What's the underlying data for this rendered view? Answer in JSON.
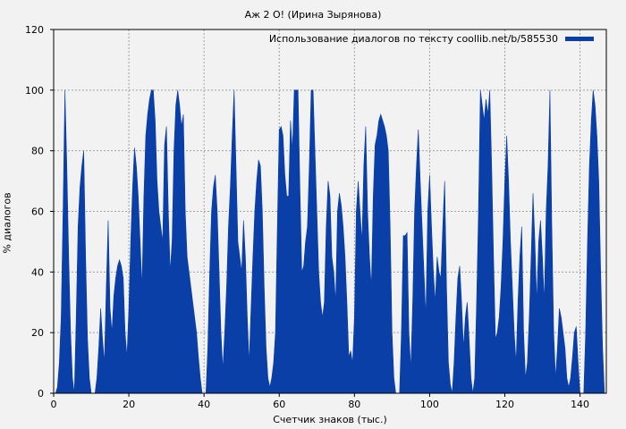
{
  "chart_data": {
    "type": "area",
    "title": "Аж 2 О! (Ирина Зырянова)",
    "xlabel": "Счетчик знаков (тыс.)",
    "ylabel": "% диалогов",
    "legend": "Использование диалогов по тексту coollib.net/b/585530",
    "legend_position": "top-right",
    "grid": true,
    "xlim": [
      0,
      147
    ],
    "ylim": [
      0,
      120
    ],
    "x_ticks": [
      0,
      20,
      40,
      60,
      80,
      100,
      120,
      140
    ],
    "y_ticks": [
      0,
      20,
      40,
      60,
      80,
      100,
      120
    ],
    "color": "#0a3fa8",
    "series": [
      {
        "values": [
          [
            0.5,
            0
          ],
          [
            1,
            2
          ],
          [
            1.5,
            10
          ],
          [
            2,
            25
          ],
          [
            2.5,
            60
          ],
          [
            3,
            100
          ],
          [
            3.5,
            75
          ],
          [
            4,
            45
          ],
          [
            4.5,
            20
          ],
          [
            5,
            5
          ],
          [
            5.5,
            0
          ],
          [
            6,
            25
          ],
          [
            6.5,
            55
          ],
          [
            7,
            68
          ],
          [
            7.5,
            75
          ],
          [
            8,
            80
          ],
          [
            8.5,
            45
          ],
          [
            9,
            18
          ],
          [
            9.5,
            5
          ],
          [
            10,
            0
          ],
          [
            11,
            0
          ],
          [
            11.5,
            5
          ],
          [
            12,
            15
          ],
          [
            12.5,
            28
          ],
          [
            13,
            18
          ],
          [
            13.5,
            10
          ],
          [
            14,
            35
          ],
          [
            14.5,
            57
          ],
          [
            15,
            28
          ],
          [
            15.5,
            20
          ],
          [
            16,
            32
          ],
          [
            16.5,
            38
          ],
          [
            17,
            42
          ],
          [
            17.5,
            44
          ],
          [
            18,
            42
          ],
          [
            18.5,
            38
          ],
          [
            19,
            20
          ],
          [
            19.5,
            12
          ],
          [
            20,
            28
          ],
          [
            20.5,
            50
          ],
          [
            21,
            68
          ],
          [
            21.5,
            81
          ],
          [
            22,
            75
          ],
          [
            22.5,
            65
          ],
          [
            23,
            50
          ],
          [
            23.5,
            35
          ],
          [
            24,
            65
          ],
          [
            24.5,
            85
          ],
          [
            25,
            92
          ],
          [
            25.5,
            97
          ],
          [
            26,
            100
          ],
          [
            26.5,
            100
          ],
          [
            27,
            90
          ],
          [
            27.5,
            70
          ],
          [
            28,
            60
          ],
          [
            28.5,
            55
          ],
          [
            29,
            50
          ],
          [
            29.5,
            82
          ],
          [
            30,
            88
          ],
          [
            30.5,
            60
          ],
          [
            31,
            40
          ],
          [
            31.5,
            50
          ],
          [
            32,
            80
          ],
          [
            32.5,
            95
          ],
          [
            33,
            100
          ],
          [
            33.5,
            95
          ],
          [
            34,
            88
          ],
          [
            34.5,
            92
          ],
          [
            35,
            60
          ],
          [
            35.5,
            45
          ],
          [
            36,
            40
          ],
          [
            36.5,
            35
          ],
          [
            37,
            30
          ],
          [
            37.5,
            25
          ],
          [
            38,
            20
          ],
          [
            38.5,
            12
          ],
          [
            39,
            5
          ],
          [
            39.5,
            0
          ],
          [
            40.5,
            0
          ],
          [
            41,
            15
          ],
          [
            41.5,
            40
          ],
          [
            42,
            60
          ],
          [
            42.5,
            68
          ],
          [
            43,
            72
          ],
          [
            43.5,
            60
          ],
          [
            44,
            40
          ],
          [
            44.5,
            20
          ],
          [
            45,
            8
          ],
          [
            45.5,
            20
          ],
          [
            46,
            35
          ],
          [
            46.5,
            55
          ],
          [
            47,
            68
          ],
          [
            47.5,
            85
          ],
          [
            48,
            100
          ],
          [
            48.5,
            75
          ],
          [
            49,
            50
          ],
          [
            49.5,
            45
          ],
          [
            50,
            40
          ],
          [
            50.5,
            57
          ],
          [
            51,
            45
          ],
          [
            51.5,
            25
          ],
          [
            52,
            10
          ],
          [
            52.5,
            28
          ],
          [
            53,
            45
          ],
          [
            53.5,
            60
          ],
          [
            54,
            70
          ],
          [
            54.5,
            77
          ],
          [
            55,
            75
          ],
          [
            55.5,
            60
          ],
          [
            56,
            35
          ],
          [
            56.5,
            15
          ],
          [
            57,
            5
          ],
          [
            57.5,
            2
          ],
          [
            58,
            5
          ],
          [
            58.5,
            10
          ],
          [
            59,
            20
          ],
          [
            59.5,
            55
          ],
          [
            60,
            87
          ],
          [
            60.5,
            88
          ],
          [
            61,
            85
          ],
          [
            61.5,
            72
          ],
          [
            62,
            65
          ],
          [
            62.5,
            65
          ],
          [
            63,
            90
          ],
          [
            63.5,
            80
          ],
          [
            64,
            100
          ],
          [
            64.5,
            100
          ],
          [
            65,
            100
          ],
          [
            65.5,
            68
          ],
          [
            66,
            40
          ],
          [
            66.5,
            42
          ],
          [
            67,
            50
          ],
          [
            67.5,
            55
          ],
          [
            68,
            75
          ],
          [
            68.5,
            100
          ],
          [
            69,
            100
          ],
          [
            69.5,
            80
          ],
          [
            70,
            60
          ],
          [
            70.5,
            40
          ],
          [
            71,
            30
          ],
          [
            71.5,
            25
          ],
          [
            72,
            30
          ],
          [
            72.5,
            55
          ],
          [
            73,
            70
          ],
          [
            73.5,
            65
          ],
          [
            74,
            45
          ],
          [
            74.5,
            40
          ],
          [
            75,
            30
          ],
          [
            75.5,
            60
          ],
          [
            76,
            66
          ],
          [
            76.5,
            62
          ],
          [
            77,
            55
          ],
          [
            77.5,
            45
          ],
          [
            78,
            30
          ],
          [
            78.5,
            12
          ],
          [
            79,
            14
          ],
          [
            79.5,
            10
          ],
          [
            80,
            25
          ],
          [
            80.5,
            60
          ],
          [
            81,
            70
          ],
          [
            81.5,
            60
          ],
          [
            82,
            50
          ],
          [
            82.5,
            75
          ],
          [
            83,
            88
          ],
          [
            83.5,
            60
          ],
          [
            84,
            45
          ],
          [
            84.5,
            35
          ],
          [
            85,
            65
          ],
          [
            85.5,
            82
          ],
          [
            86,
            85
          ],
          [
            86.5,
            90
          ],
          [
            87,
            92
          ],
          [
            87.5,
            90
          ],
          [
            88,
            88
          ],
          [
            88.5,
            85
          ],
          [
            89,
            80
          ],
          [
            89.5,
            55
          ],
          [
            90,
            20
          ],
          [
            90.5,
            5
          ],
          [
            91,
            0
          ],
          [
            92,
            0
          ],
          [
            92.5,
            20
          ],
          [
            93,
            52
          ],
          [
            93.5,
            52
          ],
          [
            94,
            53
          ],
          [
            94.5,
            20
          ],
          [
            95,
            8
          ],
          [
            95.5,
            30
          ],
          [
            96,
            60
          ],
          [
            96.5,
            75
          ],
          [
            97,
            87
          ],
          [
            97.5,
            70
          ],
          [
            98,
            55
          ],
          [
            98.5,
            40
          ],
          [
            99,
            25
          ],
          [
            99.5,
            60
          ],
          [
            100,
            72
          ],
          [
            100.5,
            55
          ],
          [
            101,
            40
          ],
          [
            101.5,
            30
          ],
          [
            102,
            45
          ],
          [
            102.5,
            40
          ],
          [
            103,
            38
          ],
          [
            103.5,
            55
          ],
          [
            104,
            70
          ],
          [
            104.5,
            35
          ],
          [
            105,
            10
          ],
          [
            105.5,
            3
          ],
          [
            106,
            0
          ],
          [
            106.5,
            10
          ],
          [
            107,
            25
          ],
          [
            107.5,
            38
          ],
          [
            108,
            42
          ],
          [
            108.5,
            30
          ],
          [
            109,
            15
          ],
          [
            109.5,
            25
          ],
          [
            110,
            30
          ],
          [
            110.5,
            18
          ],
          [
            111,
            5
          ],
          [
            111.5,
            0
          ],
          [
            112,
            5
          ],
          [
            112.5,
            30
          ],
          [
            113,
            60
          ],
          [
            113.5,
            100
          ],
          [
            114,
            95
          ],
          [
            114.5,
            90
          ],
          [
            115,
            97
          ],
          [
            115.5,
            92
          ],
          [
            116,
            100
          ],
          [
            116.5,
            75
          ],
          [
            117,
            45
          ],
          [
            117.5,
            18
          ],
          [
            118,
            20
          ],
          [
            118.5,
            25
          ],
          [
            119,
            35
          ],
          [
            119.5,
            50
          ],
          [
            120,
            70
          ],
          [
            120.5,
            85
          ],
          [
            121,
            70
          ],
          [
            121.5,
            50
          ],
          [
            122,
            35
          ],
          [
            122.5,
            20
          ],
          [
            123,
            10
          ],
          [
            123.5,
            30
          ],
          [
            124,
            45
          ],
          [
            124.5,
            55
          ],
          [
            125,
            20
          ],
          [
            125.5,
            5
          ],
          [
            126,
            10
          ],
          [
            126.5,
            25
          ],
          [
            127,
            45
          ],
          [
            127.5,
            66
          ],
          [
            128,
            50
          ],
          [
            128.5,
            30
          ],
          [
            129,
            50
          ],
          [
            129.5,
            57
          ],
          [
            130,
            45
          ],
          [
            130.5,
            30
          ],
          [
            131,
            60
          ],
          [
            131.5,
            75
          ],
          [
            132,
            100
          ],
          [
            132.5,
            55
          ],
          [
            133,
            20
          ],
          [
            133.5,
            5
          ],
          [
            134,
            15
          ],
          [
            134.5,
            28
          ],
          [
            135,
            25
          ],
          [
            135.5,
            20
          ],
          [
            136,
            15
          ],
          [
            136.5,
            5
          ],
          [
            137,
            2
          ],
          [
            137.5,
            5
          ],
          [
            138,
            12
          ],
          [
            138.5,
            20
          ],
          [
            139,
            22
          ],
          [
            139.5,
            10
          ],
          [
            140,
            0
          ],
          [
            141,
            0
          ],
          [
            141.5,
            20
          ],
          [
            142,
            50
          ],
          [
            142.5,
            75
          ],
          [
            143,
            90
          ],
          [
            143.5,
            100
          ],
          [
            144,
            95
          ],
          [
            144.5,
            85
          ],
          [
            145,
            70
          ],
          [
            145.5,
            40
          ],
          [
            146,
            15
          ],
          [
            146.5,
            0
          ]
        ]
      }
    ]
  }
}
